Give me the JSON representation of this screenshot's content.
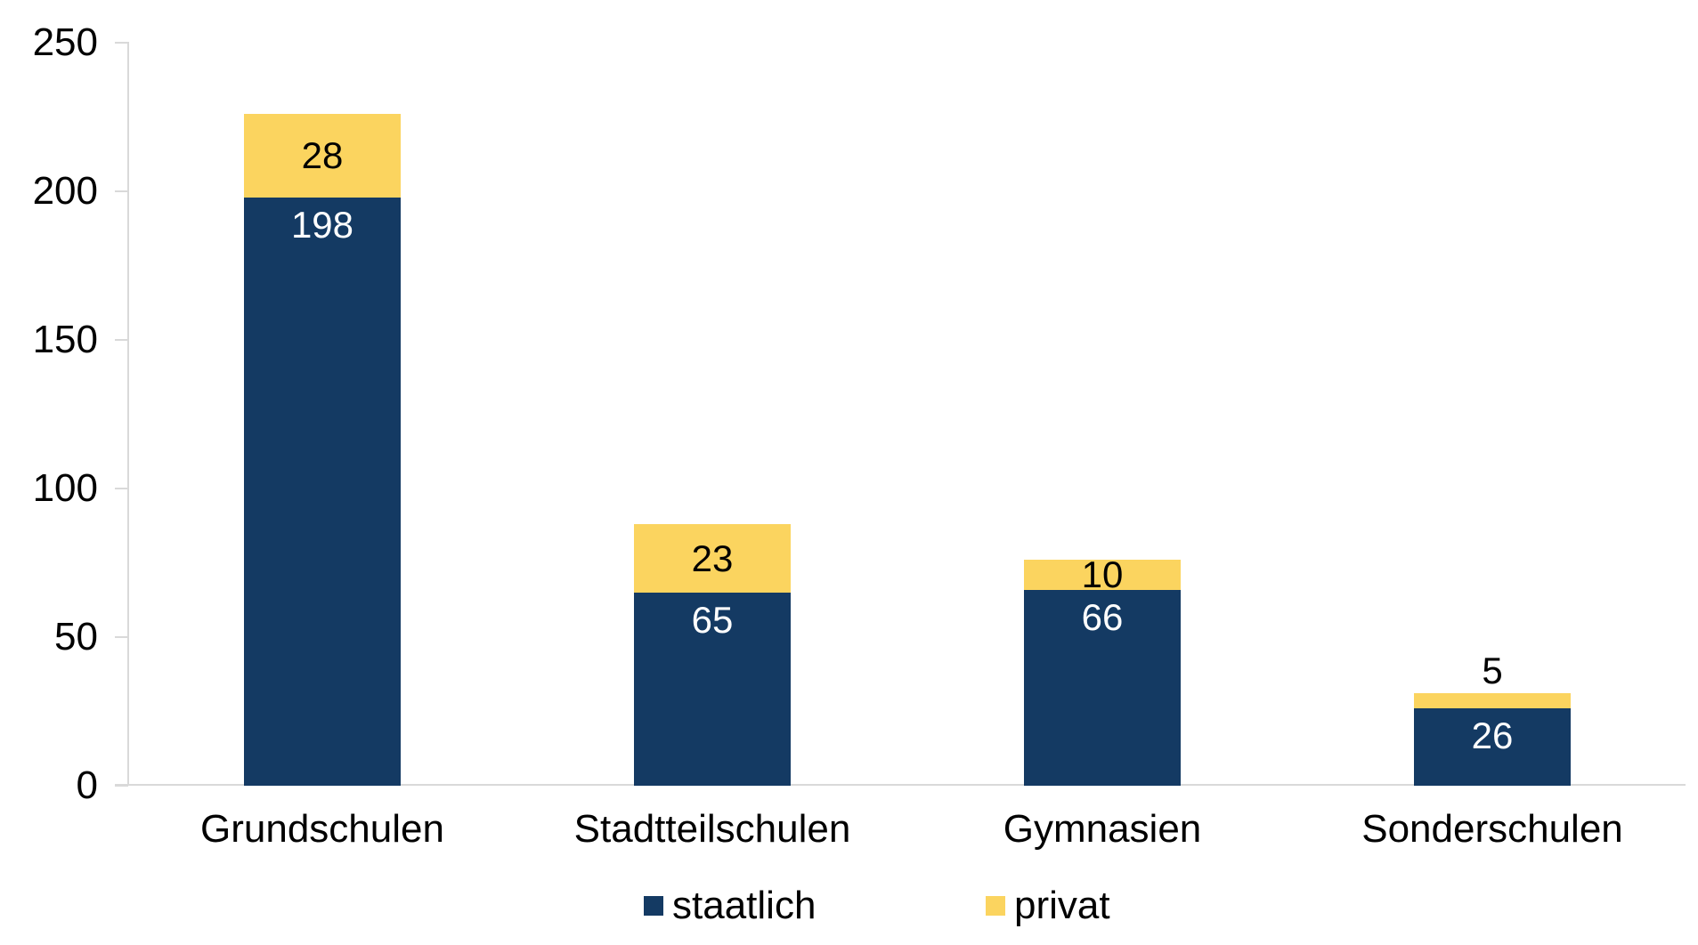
{
  "chart_data": {
    "type": "bar",
    "stacked": true,
    "title": "",
    "xlabel": "",
    "ylabel": "",
    "categories": [
      "Grundschulen",
      "Stadtteilschulen",
      "Gymnasien",
      "Sonderschulen"
    ],
    "series": [
      {
        "name": "staatlich",
        "color": "#143A63",
        "label_color": "#FFFFFF",
        "values": [
          198,
          65,
          66,
          26
        ]
      },
      {
        "name": "privat",
        "color": "#FBD45F",
        "label_color": "#000000",
        "values": [
          28,
          23,
          10,
          5
        ]
      }
    ],
    "ylim": [
      0,
      250
    ],
    "yticks": [
      0,
      50,
      100,
      150,
      200,
      250
    ],
    "grid": false,
    "legend_position": "bottom"
  },
  "legend": {
    "items": [
      {
        "label": "staatlich",
        "color": "#143A63"
      },
      {
        "label": "privat",
        "color": "#FBD45F"
      }
    ]
  },
  "colors": {
    "background": "#FFFFFF",
    "axis": "#D9D9D9",
    "text": "#000000"
  }
}
